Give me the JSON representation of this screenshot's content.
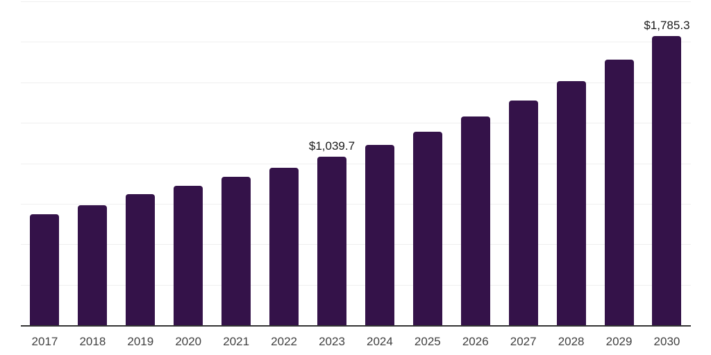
{
  "chart_data": {
    "type": "bar",
    "title": "",
    "xlabel": "",
    "ylabel": "",
    "categories": [
      "2017",
      "2018",
      "2019",
      "2020",
      "2021",
      "2022",
      "2023",
      "2024",
      "2025",
      "2026",
      "2027",
      "2028",
      "2029",
      "2030"
    ],
    "values": [
      687,
      742,
      810,
      862,
      917,
      973,
      1039.7,
      1114,
      1195,
      1290,
      1388,
      1508,
      1640,
      1785.3
    ],
    "annotations": [
      {
        "category": "2023",
        "text": "$1,039.7"
      },
      {
        "category": "2030",
        "text": "$1,785.3"
      }
    ],
    "ylim": [
      0,
      2000
    ],
    "y_intervals": 8,
    "grid": "horizontal",
    "legend": "none",
    "y_axis_labels_visible": false,
    "colors": {
      "bar": "#341249",
      "gridline": "#efefef",
      "axis_line": "#333333",
      "tick_label": "#404040",
      "data_label": "#1a1a1a",
      "background": "#ffffff"
    }
  }
}
